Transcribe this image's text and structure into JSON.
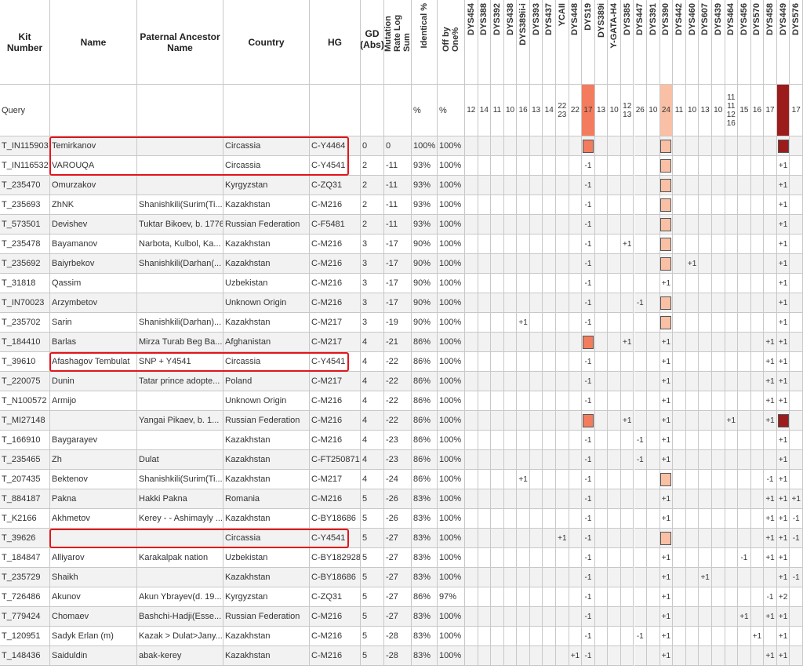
{
  "table": {
    "columns": [
      "Kit Number",
      "Name",
      "Paternal Ancestor Name",
      "Country",
      "HG",
      "GD (Abs)",
      "Mutation Rate Log Sum",
      "Identical %",
      "Off by One%"
    ],
    "markers": [
      "DYS454",
      "DYS388",
      "DYS392",
      "DYS438",
      "DYS389ii-i",
      "DYS393",
      "DYS437",
      "YCAII",
      "DYS448",
      "DYS19",
      "DYS389i",
      "Y-GATA-H4",
      "DYS385",
      "DYS447",
      "DYS391",
      "DYS390",
      "DYS442",
      "DYS460",
      "DYS607",
      "DYS439",
      "DYS464",
      "DYS456",
      "DYS570",
      "DYS458",
      "DYS449",
      "DYS576"
    ],
    "query": {
      "kit": "Query",
      "identical": "%",
      "off_by_one": "%",
      "markers": {
        "DYS454": "12",
        "DYS388": "14",
        "DYS392": "11",
        "DYS438": "10",
        "DYS389ii-i": "16",
        "DYS393": "13",
        "DYS437": "14",
        "YCAII": "22\n23",
        "DYS448": "22",
        "DYS19": "17",
        "DYS389i": "13",
        "Y-GATA-H4": "10",
        "DYS385": "12\n13",
        "DYS447": "26",
        "DYS391": "10",
        "DYS390": "24",
        "DYS442": "11",
        "DYS460": "10",
        "DYS607": "13",
        "DYS439": "10",
        "DYS464": "11\n11\n12\n16",
        "DYS456": "15",
        "DYS570": "16",
        "DYS458": "17",
        "DYS576": "17"
      },
      "highlights": {
        "DYS19": "#f47c5e",
        "DYS390": "#f9c0a5",
        "DYS449": "#9c1c1c"
      }
    },
    "rows": [
      {
        "kit": "T_IN115903",
        "name": "Temirkanov",
        "country": "Circassia",
        "hg": "C-Y4464",
        "gd": 0,
        "mutation": 0,
        "identical": "100%",
        "off_by_one": "100%",
        "markers": {},
        "highlights": {
          "DYS19": "#f47c5e",
          "DYS390": "#f9c0a5",
          "DYS449": "#9c1c1c"
        },
        "boxed": true
      },
      {
        "kit": "T_IN116532",
        "name": "VAROUQA",
        "country": "Circassia",
        "hg": "C-Y4541",
        "gd": 2,
        "mutation": -11,
        "identical": "93%",
        "off_by_one": "100%",
        "markers": {
          "DYS19": "-1",
          "DYS449": "+1"
        },
        "highlights": {
          "DYS390": "#f9c0a5"
        },
        "boxed": true
      },
      {
        "kit": "T_235470",
        "name": "Omurzakov",
        "country": "Kyrgyzstan",
        "hg": "C-ZQ31",
        "gd": 2,
        "mutation": -11,
        "identical": "93%",
        "off_by_one": "100%",
        "markers": {
          "DYS19": "-1",
          "DYS449": "+1"
        },
        "highlights": {
          "DYS390": "#f9c0a5"
        }
      },
      {
        "kit": "T_235693",
        "name": "ZhNK",
        "ancestor": "Shanishkili(Surim(Ti...",
        "country": "Kazakhstan",
        "hg": "C-M216",
        "gd": 2,
        "mutation": -11,
        "identical": "93%",
        "off_by_one": "100%",
        "markers": {
          "DYS19": "-1",
          "DYS449": "+1"
        },
        "highlights": {
          "DYS390": "#f9c0a5"
        }
      },
      {
        "kit": "T_573501",
        "name": "Devishev",
        "ancestor": "Tuktar Bikoev, b. 1776",
        "country": "Russian Federation",
        "hg": "C-F5481",
        "gd": 2,
        "mutation": -11,
        "identical": "93%",
        "off_by_one": "100%",
        "markers": {
          "DYS19": "-1",
          "DYS449": "+1"
        },
        "highlights": {
          "DYS390": "#f9c0a5"
        }
      },
      {
        "kit": "T_235478",
        "name": "Bayamanov",
        "ancestor": "Narbota, Kulbol, Ka...",
        "country": "Kazakhstan",
        "hg": "C-M216",
        "gd": 3,
        "mutation": -17,
        "identical": "90%",
        "off_by_one": "100%",
        "markers": {
          "DYS19": "-1",
          "DYS385": "+1",
          "DYS449": "+1"
        },
        "highlights": {
          "DYS390": "#f9c0a5"
        }
      },
      {
        "kit": "T_235692",
        "name": "Baiyrbekov",
        "ancestor": "Shanishkili(Darhan(...",
        "country": "Kazakhstan",
        "hg": "C-M216",
        "gd": 3,
        "mutation": -17,
        "identical": "90%",
        "off_by_one": "100%",
        "markers": {
          "DYS19": "-1",
          "DYS460": "+1",
          "DYS449": "+1"
        },
        "highlights": {
          "DYS390": "#f9c0a5"
        }
      },
      {
        "kit": "T_31818",
        "name": "Qassim",
        "country": "Uzbekistan",
        "hg": "C-M216",
        "gd": 3,
        "mutation": -17,
        "identical": "90%",
        "off_by_one": "100%",
        "markers": {
          "DYS19": "-1",
          "DYS390": "+1",
          "DYS449": "+1"
        },
        "highlights": {}
      },
      {
        "kit": "T_IN70023",
        "name": "Arzymbetov",
        "country": "Unknown Origin",
        "hg": "C-M216",
        "gd": 3,
        "mutation": -17,
        "identical": "90%",
        "off_by_one": "100%",
        "markers": {
          "DYS19": "-1",
          "DYS447": "-1",
          "DYS449": "+1"
        },
        "highlights": {
          "DYS390": "#f9c0a5"
        }
      },
      {
        "kit": "T_235702",
        "name": "Sarin",
        "ancestor": "Shanishkili(Darhan)...",
        "country": "Kazakhstan",
        "hg": "C-M217",
        "gd": 3,
        "mutation": -19,
        "identical": "90%",
        "off_by_one": "100%",
        "markers": {
          "DYS389ii-i": "+1",
          "DYS19": "-1",
          "DYS449": "+1"
        },
        "highlights": {
          "DYS390": "#f9c0a5"
        }
      },
      {
        "kit": "T_184410",
        "name": "Barlas",
        "ancestor": "Mirza Turab Beg Ba...",
        "country": "Afghanistan",
        "hg": "C-M217",
        "gd": 4,
        "mutation": -21,
        "identical": "86%",
        "off_by_one": "100%",
        "markers": {
          "DYS385": "+1",
          "DYS390": "+1",
          "DYS458": "+1",
          "DYS449": "+1"
        },
        "highlights": {
          "DYS19": "#f47c5e"
        }
      },
      {
        "kit": "T_39610",
        "name": "Afashagov Tembulat",
        "ancestor": "SNP + Y4541",
        "country": "Circassia",
        "hg": "C-Y4541",
        "gd": 4,
        "mutation": -22,
        "identical": "86%",
        "off_by_one": "100%",
        "markers": {
          "DYS19": "-1",
          "DYS390": "+1",
          "DYS458": "+1",
          "DYS449": "+1"
        },
        "highlights": {},
        "boxed": true
      },
      {
        "kit": "T_220075",
        "name": "Dunin",
        "ancestor": "Tatar prince adopte...",
        "country": "Poland",
        "hg": "C-M217",
        "gd": 4,
        "mutation": -22,
        "identical": "86%",
        "off_by_one": "100%",
        "markers": {
          "DYS19": "-1",
          "DYS390": "+1",
          "DYS458": "+1",
          "DYS449": "+1"
        },
        "highlights": {}
      },
      {
        "kit": "T_N100572",
        "name": "Armijo",
        "country": "Unknown Origin",
        "hg": "C-M216",
        "gd": 4,
        "mutation": -22,
        "identical": "86%",
        "off_by_one": "100%",
        "markers": {
          "DYS19": "-1",
          "DYS390": "+1",
          "DYS458": "+1",
          "DYS449": "+1"
        },
        "highlights": {}
      },
      {
        "kit": "T_MI27148",
        "ancestor": "Yangai Pikaev, b. 1...",
        "country": "Russian Federation",
        "hg": "C-M216",
        "gd": 4,
        "mutation": -22,
        "identical": "86%",
        "off_by_one": "100%",
        "markers": {
          "DYS385": "+1",
          "DYS390": "+1",
          "DYS464": "+1",
          "DYS458": "+1"
        },
        "highlights": {
          "DYS19": "#f47c5e",
          "DYS449": "#9c1c1c"
        }
      },
      {
        "kit": "T_166910",
        "name": "Baygarayev",
        "country": "Kazakhstan",
        "hg": "C-M216",
        "gd": 4,
        "mutation": -23,
        "identical": "86%",
        "off_by_one": "100%",
        "markers": {
          "DYS19": "-1",
          "DYS447": "-1",
          "DYS390": "+1",
          "DYS449": "+1"
        },
        "highlights": {}
      },
      {
        "kit": "T_235465",
        "name": "Zh",
        "ancestor": "Dulat",
        "country": "Kazakhstan",
        "hg": "C-FT250871",
        "gd": 4,
        "mutation": -23,
        "identical": "86%",
        "off_by_one": "100%",
        "markers": {
          "DYS19": "-1",
          "DYS447": "-1",
          "DYS390": "+1",
          "DYS449": "+1"
        },
        "highlights": {}
      },
      {
        "kit": "T_207435",
        "name": "Bektenov",
        "ancestor": "Shanishkili(Surim(Ti...",
        "country": "Kazakhstan",
        "hg": "C-M217",
        "gd": 4,
        "mutation": -24,
        "identical": "86%",
        "off_by_one": "100%",
        "markers": {
          "DYS389ii-i": "+1",
          "DYS19": "-1",
          "DYS458": "-1",
          "DYS449": "+1"
        },
        "highlights": {
          "DYS390": "#f9c0a5"
        }
      },
      {
        "kit": "T_884187",
        "name": "Pakna",
        "ancestor": "Hakki Pakna",
        "country": "Romania",
        "hg": "C-M216",
        "gd": 5,
        "mutation": -26,
        "identical": "83%",
        "off_by_one": "100%",
        "markers": {
          "DYS19": "-1",
          "DYS390": "+1",
          "DYS458": "+1",
          "DYS449": "+1",
          "DYS576": "+1"
        },
        "highlights": {}
      },
      {
        "kit": "T_K2166",
        "name": "Akhmetov",
        "ancestor": "Kerey - - Ashimayly ...",
        "country": "Kazakhstan",
        "hg": "C-BY18686",
        "gd": 5,
        "mutation": -26,
        "identical": "83%",
        "off_by_one": "100%",
        "markers": {
          "DYS19": "-1",
          "DYS390": "+1",
          "DYS458": "+1",
          "DYS449": "+1",
          "DYS576": "-1"
        },
        "highlights": {}
      },
      {
        "kit": "T_39626",
        "country": "Circassia",
        "hg": "C-Y4541",
        "gd": 5,
        "mutation": -27,
        "identical": "83%",
        "off_by_one": "100%",
        "markers": {
          "YCAII": "+1",
          "DYS19": "-1",
          "DYS458": "+1",
          "DYS449": "+1",
          "DYS576": "-1"
        },
        "highlights": {
          "DYS390": "#f9c0a5"
        },
        "boxed": true
      },
      {
        "kit": "T_184847",
        "name": "Alliyarov",
        "ancestor": "Karakalpak nation",
        "country": "Uzbekistan",
        "hg": "C-BY182928",
        "gd": 5,
        "mutation": -27,
        "identical": "83%",
        "off_by_one": "100%",
        "markers": {
          "DYS19": "-1",
          "DYS390": "+1",
          "DYS456": "-1",
          "DYS458": "+1",
          "DYS449": "+1"
        },
        "highlights": {}
      },
      {
        "kit": "T_235729",
        "name": "Shaikh",
        "country": "Kazakhstan",
        "hg": "C-BY18686",
        "gd": 5,
        "mutation": -27,
        "identical": "83%",
        "off_by_one": "100%",
        "markers": {
          "DYS19": "-1",
          "DYS390": "+1",
          "DYS607": "+1",
          "DYS449": "+1",
          "DYS576": "-1"
        },
        "highlights": {}
      },
      {
        "kit": "T_726486",
        "name": "Akunov",
        "ancestor": "Akun Ybrayev(d. 19...",
        "country": "Kyrgyzstan",
        "hg": "C-ZQ31",
        "gd": 5,
        "mutation": -27,
        "identical": "86%",
        "off_by_one": "97%",
        "markers": {
          "DYS19": "-1",
          "DYS390": "+1",
          "DYS458": "-1",
          "DYS449": "+2"
        },
        "highlights": {}
      },
      {
        "kit": "T_779424",
        "name": "Chomaev",
        "ancestor": "Bashchi-Hadji(Esse...",
        "country": "Russian Federation",
        "hg": "C-M216",
        "gd": 5,
        "mutation": -27,
        "identical": "83%",
        "off_by_one": "100%",
        "markers": {
          "DYS19": "-1",
          "DYS390": "+1",
          "DYS456": "+1",
          "DYS458": "+1",
          "DYS449": "+1"
        },
        "highlights": {}
      },
      {
        "kit": "T_120951",
        "name": "Sadyk Erlan (m)",
        "ancestor": "Kazak > Dulat>Jany...",
        "country": "Kazakhstan",
        "hg": "C-M216",
        "gd": 5,
        "mutation": -28,
        "identical": "83%",
        "off_by_one": "100%",
        "markers": {
          "DYS19": "-1",
          "DYS447": "-1",
          "DYS390": "+1",
          "DYS570": "+1",
          "DYS449": "+1"
        },
        "highlights": {}
      },
      {
        "kit": "T_148436",
        "name": "Saiduldin",
        "ancestor": "abak-kerey",
        "country": "Kazakhstan",
        "hg": "C-M216",
        "gd": 5,
        "mutation": -28,
        "identical": "83%",
        "off_by_one": "100%",
        "markers": {
          "DYS448": "+1",
          "DYS19": "-1",
          "DYS390": "+1",
          "DYS458": "+1",
          "DYS449": "+1"
        },
        "highlights": {}
      }
    ]
  }
}
